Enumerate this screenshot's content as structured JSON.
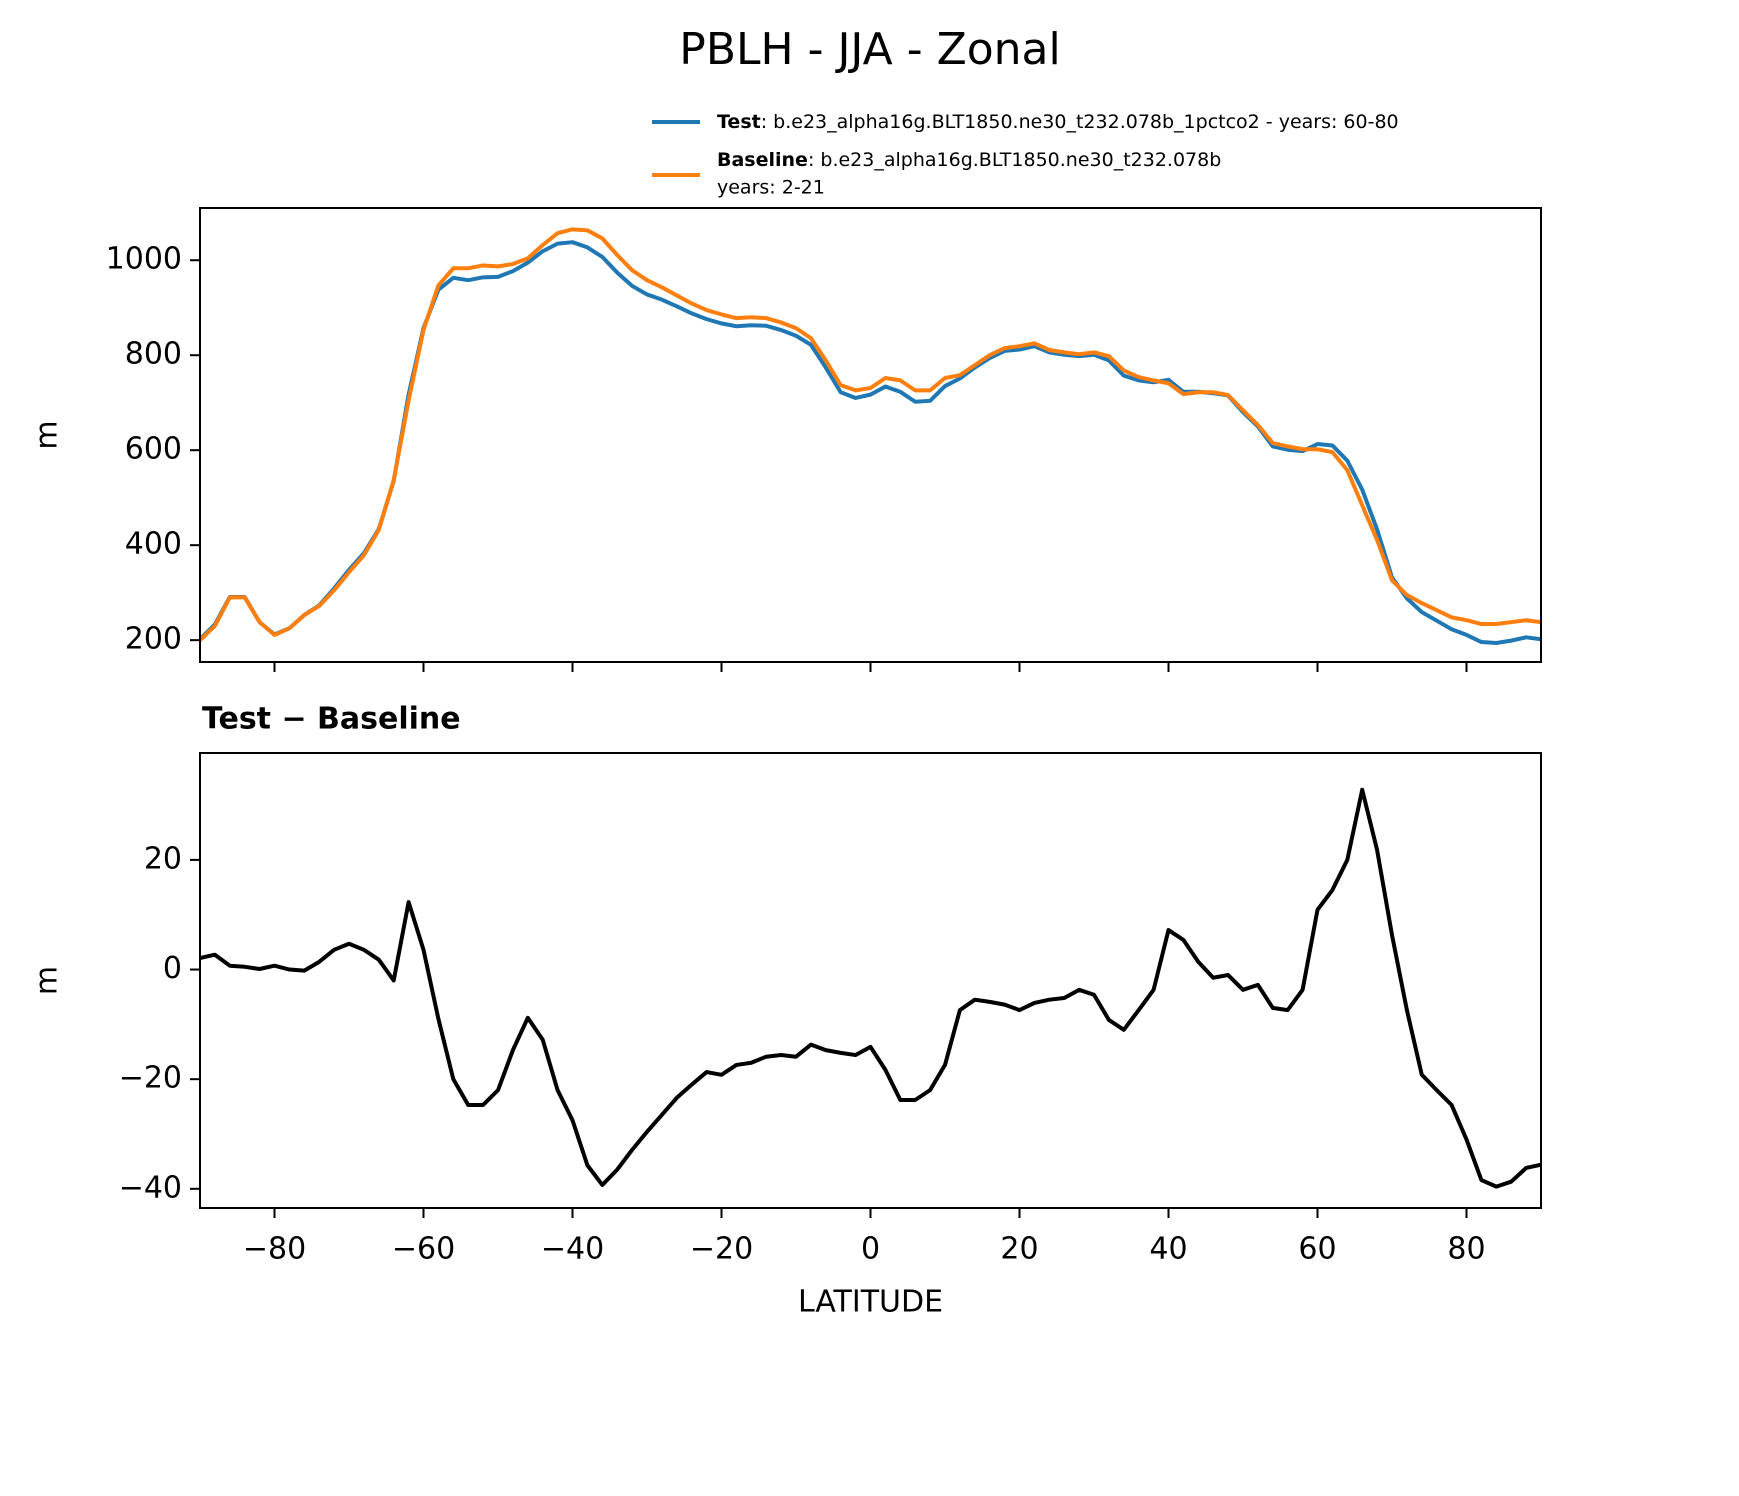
{
  "title": "PBLH - JJA - Zonal",
  "chart_data": [
    {
      "type": "line",
      "ylabel": "m",
      "x": [
        -90,
        -88,
        -86,
        -84,
        -82,
        -80,
        -78,
        -76,
        -74,
        -72,
        -70,
        -68,
        -66,
        -64,
        -62,
        -60,
        -58,
        -56,
        -54,
        -52,
        -50,
        -48,
        -46,
        -44,
        -42,
        -40,
        -38,
        -36,
        -34,
        -32,
        -30,
        -28,
        -26,
        -24,
        -22,
        -20,
        -18,
        -16,
        -14,
        -12,
        -10,
        -8,
        -6,
        -4,
        -2,
        0,
        2,
        4,
        6,
        8,
        10,
        12,
        14,
        16,
        18,
        20,
        22,
        24,
        26,
        28,
        30,
        32,
        34,
        36,
        38,
        40,
        42,
        44,
        46,
        48,
        50,
        52,
        54,
        56,
        58,
        60,
        62,
        64,
        66,
        68,
        70,
        72,
        74,
        76,
        78,
        80,
        82,
        84,
        86,
        88,
        90
      ],
      "series": [
        {
          "name": "Test",
          "description": ": b.e23_alpha16g.BLT1850.ne30_t232.078b_1pctco2 - years: 60-80",
          "color": "#1f77b4",
          "values": [
            202,
            233,
            291,
            291,
            238,
            212,
            225,
            253,
            273,
            309,
            348,
            383,
            434,
            535,
            717,
            857,
            938,
            963,
            958,
            964,
            965,
            977,
            995,
            1019,
            1035,
            1038,
            1027,
            1007,
            974,
            946,
            928,
            917,
            903,
            888,
            876,
            867,
            861,
            863,
            862,
            853,
            841,
            822,
            774,
            722,
            710,
            717,
            734,
            723,
            702,
            704,
            735,
            751,
            774,
            794,
            809,
            812,
            819,
            806,
            801,
            798,
            801,
            789,
            757,
            747,
            743,
            748,
            723,
            723,
            720,
            715,
            680,
            650,
            608,
            601,
            598,
            613,
            610,
            578,
            517,
            433,
            332,
            288,
            259,
            241,
            223,
            211,
            196,
            194,
            199,
            206,
            202
          ]
        },
        {
          "name": "Baseline",
          "description": ": b.e23_alpha16g.BLT1850.ne30_t232.078b",
          "description_line2": "years: 2-21",
          "color": "#ff7f0e",
          "values": [
            200,
            230,
            290,
            290,
            238,
            211,
            225,
            253,
            272,
            305,
            343,
            379,
            432,
            537,
            705,
            853,
            947,
            983,
            983,
            989,
            987,
            992,
            1004,
            1032,
            1057,
            1065,
            1063,
            1046,
            1011,
            979,
            958,
            943,
            926,
            909,
            895,
            886,
            878,
            880,
            878,
            869,
            857,
            836,
            789,
            737,
            726,
            731,
            752,
            747,
            726,
            726,
            752,
            758,
            779,
            800,
            815,
            819,
            825,
            811,
            806,
            802,
            806,
            798,
            768,
            754,
            747,
            741,
            718,
            722,
            722,
            716,
            684,
            653,
            615,
            608,
            602,
            602,
            596,
            558,
            484,
            411,
            326,
            295,
            278,
            263,
            248,
            242,
            234,
            234,
            238,
            242,
            238
          ]
        }
      ],
      "xlim": [
        -90,
        90
      ],
      "xticks": [
        -80,
        -60,
        -40,
        -20,
        0,
        20,
        40,
        60,
        80
      ],
      "ylim": [
        154,
        1110
      ],
      "yticks": [
        200,
        400,
        600,
        800,
        1000
      ]
    },
    {
      "type": "line",
      "title": "Test − Baseline",
      "ylabel": "m",
      "xlabel": "LATITUDE",
      "color": "#000000",
      "x": [
        -90,
        -88,
        -86,
        -84,
        -82,
        -80,
        -78,
        -76,
        -74,
        -72,
        -70,
        -68,
        -66,
        -64,
        -62,
        -60,
        -58,
        -56,
        -54,
        -52,
        -50,
        -48,
        -46,
        -44,
        -42,
        -40,
        -38,
        -36,
        -34,
        -32,
        -30,
        -28,
        -26,
        -24,
        -22,
        -20,
        -18,
        -16,
        -14,
        -12,
        -10,
        -8,
        -6,
        -4,
        -2,
        0,
        2,
        4,
        6,
        8,
        10,
        12,
        14,
        16,
        18,
        20,
        22,
        24,
        26,
        28,
        30,
        32,
        34,
        36,
        38,
        40,
        42,
        44,
        46,
        48,
        50,
        52,
        54,
        56,
        58,
        60,
        62,
        64,
        66,
        68,
        70,
        72,
        74,
        76,
        78,
        80,
        82,
        84,
        86,
        88,
        90
      ],
      "values": [
        2.1,
        2.7,
        0.7,
        0.5,
        0.1,
        0.7,
        0,
        -0.2,
        1.4,
        3.6,
        4.7,
        3.6,
        1.8,
        -2,
        12.3,
        3.6,
        -9,
        -20,
        -24.7,
        -24.7,
        -22,
        -14.7,
        -8.8,
        -12.8,
        -22,
        -27.5,
        -35.7,
        -39.3,
        -36.5,
        -32.9,
        -29.6,
        -26.5,
        -23.4,
        -21,
        -18.7,
        -19.2,
        -17.4,
        -17,
        -15.9,
        -15.6,
        -15.9,
        -13.7,
        -14.7,
        -15.2,
        -15.6,
        -14.1,
        -18.3,
        -23.8,
        -23.8,
        -22,
        -17.4,
        -7.4,
        -5.5,
        -5.9,
        -6.4,
        -7.4,
        -6.1,
        -5.5,
        -5.2,
        -3.7,
        -4.6,
        -9.2,
        -11,
        -7.4,
        -3.7,
        7.2,
        5.4,
        1.4,
        -1.5,
        -1,
        -3.7,
        -2.8,
        -7,
        -7.4,
        -3.7,
        10.9,
        14.5,
        20,
        32.8,
        21.8,
        6.3,
        -7.4,
        -19.2,
        -22,
        -24.7,
        -31,
        -38.4,
        -39.6,
        -38.7,
        -36.2,
        -35.6
      ],
      "xlim": [
        -90,
        90
      ],
      "xticks": [
        {
          "value": -80,
          "label": "−80"
        },
        {
          "value": -60,
          "label": "−60"
        },
        {
          "value": -40,
          "label": "−40"
        },
        {
          "value": -20,
          "label": "−20"
        },
        0,
        20,
        40,
        60,
        80
      ],
      "ylim": [
        -43.5,
        39.5
      ],
      "yticks": [
        {
          "value": -40,
          "label": "−40"
        },
        {
          "value": -20,
          "label": "−20"
        },
        0,
        20
      ]
    }
  ]
}
